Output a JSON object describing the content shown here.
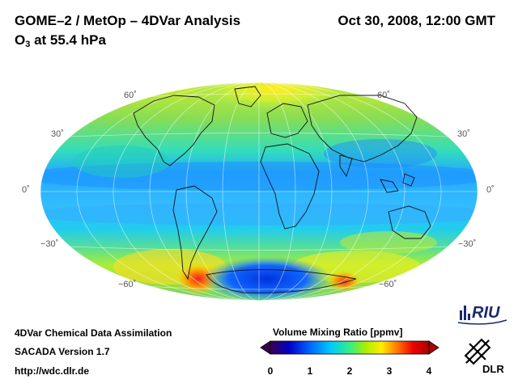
{
  "header": {
    "title": "GOME–2 / MetOp – 4DVar Analysis",
    "subtitle_prefix": "O",
    "subtitle_sub": "3",
    "subtitle_suffix": " at 55.4 hPa",
    "date": "Oct 30, 2008, 12:00 GMT"
  },
  "map": {
    "projection": "Hammer-Aitoff",
    "lat_labels": {
      "n60": "60˚",
      "n30": "30˚",
      "eq": "0˚",
      "s30": "−30˚",
      "s60": "−60˚"
    }
  },
  "footer": {
    "line1": "4DVar Chemical Data Assimilation",
    "line2": "SACADA Version 1.7",
    "line3": "http://wdc.dlr.de"
  },
  "colorbar": {
    "title": "Volume Mixing Ratio [ppmv]",
    "ticks": [
      "0",
      "1",
      "2",
      "3",
      "4"
    ],
    "colors": [
      "#3a0050",
      "#0000c8",
      "#0066ff",
      "#00c8ff",
      "#33ee88",
      "#aaee00",
      "#ffee00",
      "#ff7700",
      "#ee0000",
      "#aa0000"
    ]
  },
  "logos": {
    "riu": "RIU",
    "dlr": "DLR"
  }
}
